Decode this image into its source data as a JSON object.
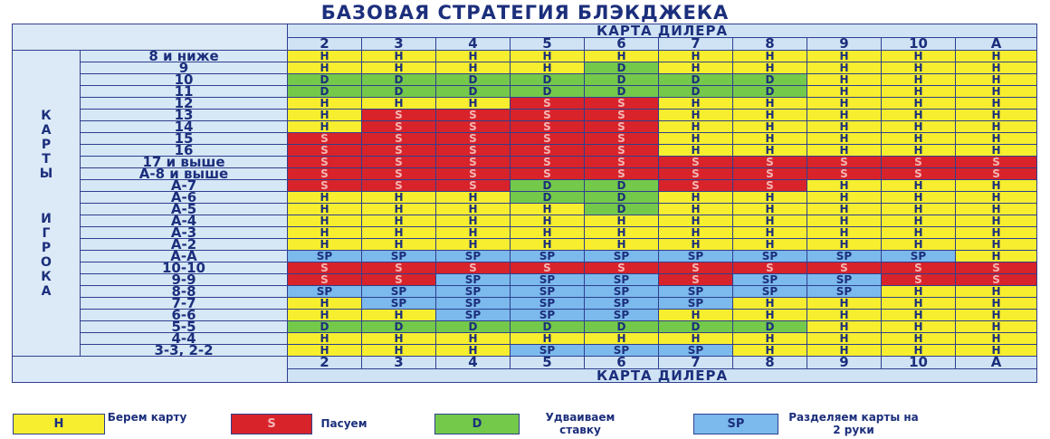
{
  "title": "БАЗОВАЯ СТРАТЕГИЯ БЛЭКДЖЕКА",
  "dealer_label": "КАРТА ДИЛЕРА",
  "player_label_word1": "КАРТЫ",
  "player_label_word2": "ИГРОКА",
  "dealer_cards": [
    "2",
    "3",
    "4",
    "5",
    "6",
    "7",
    "8",
    "9",
    "10",
    "A"
  ],
  "rows": [
    {
      "hand": "8 и ниже",
      "actions": [
        "H",
        "H",
        "H",
        "H",
        "H",
        "H",
        "H",
        "H",
        "H",
        "H"
      ]
    },
    {
      "hand": "9",
      "actions": [
        "H",
        "H",
        "H",
        "H",
        "D",
        "H",
        "H",
        "H",
        "H",
        "H"
      ]
    },
    {
      "hand": "10",
      "actions": [
        "D",
        "D",
        "D",
        "D",
        "D",
        "D",
        "D",
        "H",
        "H",
        "H"
      ]
    },
    {
      "hand": "11",
      "actions": [
        "D",
        "D",
        "D",
        "D",
        "D",
        "D",
        "D",
        "H",
        "H",
        "H"
      ]
    },
    {
      "hand": "12",
      "actions": [
        "H",
        "H",
        "H",
        "S",
        "S",
        "H",
        "H",
        "H",
        "H",
        "H"
      ]
    },
    {
      "hand": "13",
      "actions": [
        "H",
        "S",
        "S",
        "S",
        "S",
        "H",
        "H",
        "H",
        "H",
        "H"
      ]
    },
    {
      "hand": "14",
      "actions": [
        "H",
        "S",
        "S",
        "S",
        "S",
        "H",
        "H",
        "H",
        "H",
        "H"
      ]
    },
    {
      "hand": "15",
      "actions": [
        "S",
        "S",
        "S",
        "S",
        "S",
        "H",
        "H",
        "H",
        "H",
        "H"
      ]
    },
    {
      "hand": "16",
      "actions": [
        "S",
        "S",
        "S",
        "S",
        "S",
        "H",
        "H",
        "H",
        "H",
        "H"
      ]
    },
    {
      "hand": "17 и выше",
      "actions": [
        "S",
        "S",
        "S",
        "S",
        "S",
        "S",
        "S",
        "S",
        "S",
        "S"
      ]
    },
    {
      "hand": "А-8 и выше",
      "actions": [
        "S",
        "S",
        "S",
        "S",
        "S",
        "S",
        "S",
        "S",
        "S",
        "S"
      ]
    },
    {
      "hand": "А-7",
      "actions": [
        "S",
        "S",
        "S",
        "D",
        "D",
        "S",
        "S",
        "H",
        "H",
        "H"
      ]
    },
    {
      "hand": "А-6",
      "actions": [
        "H",
        "H",
        "H",
        "D",
        "D",
        "H",
        "H",
        "H",
        "H",
        "H"
      ]
    },
    {
      "hand": "А-5",
      "actions": [
        "H",
        "H",
        "H",
        "H",
        "D",
        "H",
        "H",
        "H",
        "H",
        "H"
      ]
    },
    {
      "hand": "А-4",
      "actions": [
        "H",
        "H",
        "H",
        "H",
        "H",
        "H",
        "H",
        "H",
        "H",
        "H"
      ]
    },
    {
      "hand": "А-3",
      "actions": [
        "H",
        "H",
        "H",
        "H",
        "H",
        "H",
        "H",
        "H",
        "H",
        "H"
      ]
    },
    {
      "hand": "А-2",
      "actions": [
        "H",
        "H",
        "H",
        "H",
        "H",
        "H",
        "H",
        "H",
        "H",
        "H"
      ]
    },
    {
      "hand": "А-А",
      "actions": [
        "SP",
        "SP",
        "SP",
        "SP",
        "SP",
        "SP",
        "SP",
        "SP",
        "SP",
        "H"
      ]
    },
    {
      "hand": "10-10",
      "actions": [
        "S",
        "S",
        "S",
        "S",
        "S",
        "S",
        "S",
        "S",
        "S",
        "S"
      ]
    },
    {
      "hand": "9-9",
      "actions": [
        "S",
        "S",
        "SP",
        "SP",
        "SP",
        "S",
        "SP",
        "SP",
        "S",
        "S"
      ]
    },
    {
      "hand": "8-8",
      "actions": [
        "SP",
        "SP",
        "SP",
        "SP",
        "SP",
        "SP",
        "SP",
        "SP",
        "H",
        "H"
      ]
    },
    {
      "hand": "7-7",
      "actions": [
        "H",
        "SP",
        "SP",
        "SP",
        "SP",
        "SP",
        "H",
        "H",
        "H",
        "H"
      ]
    },
    {
      "hand": "6-6",
      "actions": [
        "H",
        "H",
        "SP",
        "SP",
        "SP",
        "H",
        "H",
        "H",
        "H",
        "H"
      ]
    },
    {
      "hand": "5-5",
      "actions": [
        "D",
        "D",
        "D",
        "D",
        "D",
        "D",
        "D",
        "H",
        "H",
        "H"
      ]
    },
    {
      "hand": "4-4",
      "actions": [
        "H",
        "H",
        "H",
        "H",
        "H",
        "H",
        "H",
        "H",
        "H",
        "H"
      ]
    },
    {
      "hand": "3-3, 2-2",
      "actions": [
        "H",
        "H",
        "H",
        "SP",
        "SP",
        "SP",
        "H",
        "H",
        "H",
        "H"
      ]
    }
  ],
  "legend": [
    {
      "code": "H",
      "text": "Берем карту"
    },
    {
      "code": "S",
      "text": "Пасуем"
    },
    {
      "code": "D",
      "text": "Удваиваем ставку"
    },
    {
      "code": "SP",
      "text": "Разделяем карты на 2 руки"
    }
  ],
  "colors": {
    "H": "#f6ee2e",
    "S": "#d8232a",
    "D": "#74c94a",
    "SP": "#7cb9ec"
  }
}
